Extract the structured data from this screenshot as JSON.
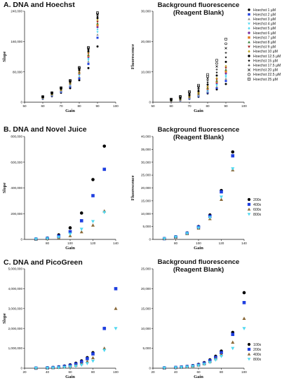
{
  "figure": {
    "colors": {
      "black": "#000000",
      "blue": "#1f3fe0",
      "gray": "#8a8a8a",
      "cyan": "#4fd8f0",
      "purple": "#7a2fa0",
      "orange": "#e07a1f",
      "green": "#2e7d32",
      "brown": "#7a4a1a",
      "pink": "#e04090",
      "olive": "#b8a020",
      "darkred": "#a01818",
      "teal": "#109090"
    }
  },
  "chart_data": [
    {
      "type": "scatter",
      "section_title": "A. DNA and Hoechst",
      "title": "",
      "xlabel": "Gain",
      "ylabel": "Slope",
      "xlim": [
        50,
        100
      ],
      "ylim": [
        0,
        240000
      ],
      "xticks": [
        50,
        60,
        70,
        80,
        90,
        100
      ],
      "yticks": [
        0,
        80000,
        160000,
        240000
      ],
      "xticklabels": [
        "50",
        "60",
        "70",
        "80",
        "90",
        "100"
      ],
      "yticklabels": [
        "0",
        "80,000",
        "160,000",
        "240,000"
      ],
      "x": [
        60,
        65,
        70,
        75,
        80,
        85,
        90
      ],
      "series": [
        {
          "name": "Hoechst 1 µM",
          "marker": "circle",
          "color": "#000000",
          "values": [
            9000,
            16000,
            25000,
            37000,
            58000,
            90000,
            147000
          ]
        },
        {
          "name": "Hoechst 2 µM",
          "marker": "square",
          "color": "#1f3fe0",
          "values": [
            10000,
            17500,
            27000,
            41000,
            63000,
            101000,
            170000
          ]
        },
        {
          "name": "Hoechst 3 µM",
          "marker": "triangle-up",
          "color": "#8a8a8a",
          "values": [
            10500,
            18200,
            28500,
            43500,
            67000,
            107000,
            178000
          ]
        },
        {
          "name": "Hoechst 4 µM",
          "marker": "triangle-down",
          "color": "#4fd8f0",
          "values": [
            11000,
            19000,
            29500,
            45000,
            70000,
            111000,
            185000
          ]
        },
        {
          "name": "Hoechst 5 µM",
          "marker": "diamond",
          "color": "#4fd8f0",
          "values": [
            11500,
            19800,
            30500,
            46500,
            72500,
            115000,
            192000
          ]
        },
        {
          "name": "Hoechst 6 µM",
          "marker": "circle",
          "color": "#7a2fa0",
          "values": [
            12000,
            20500,
            31500,
            48000,
            75000,
            119000,
            198000
          ]
        },
        {
          "name": "Hoechst 7 µM",
          "marker": "square",
          "color": "#e07a1f",
          "values": [
            12300,
            21000,
            32300,
            49000,
            77000,
            122000,
            203000
          ]
        },
        {
          "name": "Hoechst 8 µM",
          "marker": "triangle-up",
          "color": "#2e7d32",
          "values": [
            12600,
            21500,
            33000,
            50000,
            79000,
            125000,
            208000
          ]
        },
        {
          "name": "Hoechst 9 µM",
          "marker": "triangle-down",
          "color": "#a01818",
          "values": [
            12900,
            22000,
            33800,
            51000,
            81000,
            128000,
            212000
          ]
        },
        {
          "name": "Hoechst 10 µM",
          "marker": "diamond",
          "color": "#b8a020",
          "values": [
            13200,
            22500,
            34500,
            52000,
            83000,
            131000,
            217000
          ]
        },
        {
          "name": "Hoechst 12.5 µM",
          "marker": "circle",
          "color": "#000000",
          "values": [
            13500,
            23000,
            35300,
            53200,
            85000,
            134000,
            222000
          ]
        },
        {
          "name": "Hoechst 15 µM",
          "marker": "star",
          "color": "#000000",
          "values": [
            13800,
            23500,
            36000,
            54300,
            87000,
            137000,
            226000
          ]
        },
        {
          "name": "Hoechst 17.5 µM",
          "marker": "plus",
          "color": "#000000",
          "values": [
            14000,
            24000,
            36600,
            55200,
            88500,
            139000,
            229000
          ]
        },
        {
          "name": "Hoechst 20 µM",
          "marker": "x",
          "color": "#000000",
          "values": [
            14200,
            24300,
            37100,
            56000,
            89500,
            141000,
            232000
          ]
        },
        {
          "name": "Hoechst 22.5 µM",
          "marker": "circle-open",
          "color": "#000000",
          "values": [
            14400,
            24600,
            37500,
            56600,
            90500,
            143000,
            234000
          ]
        },
        {
          "name": "Hoechst 25 µM",
          "marker": "square-open",
          "color": "#000000",
          "values": [
            14600,
            24900,
            38000,
            57200,
            91500,
            144500,
            236000
          ]
        }
      ]
    },
    {
      "type": "scatter",
      "title": "Background fluorescence\n(Reagent Blank)",
      "xlabel": "Gain",
      "ylabel": "Fluorescence",
      "xlim": [
        50,
        100
      ],
      "ylim": [
        0,
        30000
      ],
      "xticks": [
        50,
        60,
        70,
        80,
        90,
        100
      ],
      "yticks": [
        0,
        10000,
        20000,
        30000
      ],
      "xticklabels": [
        "50",
        "60",
        "70",
        "80",
        "90",
        "100"
      ],
      "yticklabels": [
        "0",
        "10,000",
        "20,000",
        "30,000"
      ],
      "legend": "right",
      "x": [
        60,
        65,
        70,
        75,
        80,
        85,
        90
      ],
      "series": [
        {
          "name": "Hoechst 1 µM",
          "marker": "circle",
          "color": "#000000",
          "values": [
            300,
            600,
            1100,
            1800,
            2900,
            4200,
            6000
          ]
        },
        {
          "name": "Hoechst 2 µM",
          "marker": "square",
          "color": "#1f3fe0",
          "values": [
            350,
            650,
            1200,
            2000,
            3200,
            4700,
            7000
          ]
        },
        {
          "name": "Hoechst 3 µM",
          "marker": "triangle-up",
          "color": "#8a8a8a",
          "values": [
            380,
            700,
            1300,
            2150,
            3450,
            5100,
            7700
          ]
        },
        {
          "name": "Hoechst 4 µM",
          "marker": "triangle-down",
          "color": "#4fd8f0",
          "values": [
            410,
            760,
            1400,
            2300,
            3700,
            5500,
            8300
          ]
        },
        {
          "name": "Hoechst 5 µM",
          "marker": "diamond",
          "color": "#4fd8f0",
          "values": [
            440,
            820,
            1500,
            2450,
            3950,
            5900,
            8900
          ]
        },
        {
          "name": "Hoechst 6 µM",
          "marker": "circle",
          "color": "#7a2fa0",
          "values": [
            470,
            880,
            1600,
            2600,
            4200,
            6300,
            9500
          ]
        },
        {
          "name": "Hoechst 7 µM",
          "marker": "square",
          "color": "#e07a1f",
          "values": [
            500,
            940,
            1700,
            2750,
            4450,
            6700,
            10100
          ]
        },
        {
          "name": "Hoechst 8 µM",
          "marker": "triangle-up",
          "color": "#2e7d32",
          "values": [
            530,
            1000,
            1800,
            2900,
            4700,
            7100,
            10700
          ]
        },
        {
          "name": "Hoechst 9 µM",
          "marker": "triangle-down",
          "color": "#a01818",
          "values": [
            560,
            1060,
            1900,
            3050,
            4950,
            7500,
            11300
          ]
        },
        {
          "name": "Hoechst 10 µM",
          "marker": "diamond",
          "color": "#b8a020",
          "values": [
            590,
            1120,
            2000,
            3200,
            5200,
            7900,
            11900
          ]
        },
        {
          "name": "Hoechst 12.5 µM",
          "marker": "circle",
          "color": "#000000",
          "values": [
            650,
            1250,
            2250,
            3600,
            5800,
            8800,
            13300
          ]
        },
        {
          "name": "Hoechst 15 µM",
          "marker": "star",
          "color": "#000000",
          "values": [
            720,
            1380,
            2500,
            4000,
            6500,
            9800,
            14800
          ]
        },
        {
          "name": "Hoechst 17.5 µM",
          "marker": "plus",
          "color": "#000000",
          "values": [
            790,
            1510,
            2750,
            4400,
            7150,
            10800,
            16300
          ]
        },
        {
          "name": "Hoechst 20 µM",
          "marker": "x",
          "color": "#000000",
          "values": [
            860,
            1640,
            3000,
            4800,
            7800,
            11800,
            17800
          ]
        },
        {
          "name": "Hoechst 22.5 µM",
          "marker": "circle-open",
          "color": "#000000",
          "values": [
            930,
            1770,
            3250,
            5200,
            8450,
            12800,
            19300
          ]
        },
        {
          "name": "Hoechst 25 µM",
          "marker": "square-open",
          "color": "#000000",
          "values": [
            1000,
            1900,
            3500,
            5600,
            9100,
            13800,
            20800
          ]
        }
      ]
    },
    {
      "type": "scatter",
      "section_title": "B. DNA and Novel Juice",
      "title": "",
      "xlabel": "Gain",
      "ylabel": "Slope",
      "xlim": [
        60,
        140
      ],
      "ylim": [
        0,
        800000
      ],
      "xticks": [
        80,
        100,
        120,
        140
      ],
      "yticks": [
        0,
        200000,
        400000,
        600000,
        800000
      ],
      "xticklabels": [
        "80",
        "100",
        "120",
        "140"
      ],
      "yticklabels": [
        "0",
        "200,000",
        "400,000",
        "600,000",
        "800,000"
      ],
      "x": [
        70,
        80,
        90,
        100,
        110,
        120,
        130
      ],
      "series": [
        {
          "name": "200x",
          "marker": "circle",
          "color": "#000000",
          "values": [
            3000,
            10000,
            35000,
            90000,
            205000,
            465000,
            725000
          ]
        },
        {
          "name": "400x",
          "marker": "square",
          "color": "#1f3fe0",
          "values": [
            2500,
            8000,
            25000,
            60000,
            145000,
            340000,
            545000
          ]
        },
        {
          "name": "600x",
          "marker": "triangle-up",
          "color": "#8a6a3a",
          "values": [
            1500,
            4500,
            12000,
            28000,
            58000,
            110000,
            220000
          ]
        },
        {
          "name": "800x",
          "marker": "triangle-down",
          "color": "#4fd8f0",
          "values": [
            2000,
            6500,
            18000,
            42000,
            80000,
            140000,
            210000
          ]
        }
      ]
    },
    {
      "type": "scatter",
      "title": "Background fluorescence\n(Reagent Blank)",
      "xlabel": "Gain",
      "ylabel": "Fluorescence",
      "xlim": [
        60,
        140
      ],
      "ylim": [
        0,
        40000
      ],
      "xticks": [
        80,
        100,
        120,
        140
      ],
      "yticks": [
        0,
        5000,
        10000,
        15000,
        20000,
        25000,
        30000,
        35000,
        40000
      ],
      "xticklabels": [
        "80",
        "100",
        "120",
        "140"
      ],
      "yticklabels": [
        "0",
        "5,000",
        "10,000",
        "15,000",
        "20,000",
        "25,000",
        "30,000",
        "35,000",
        "40,000"
      ],
      "legend": "right",
      "x": [
        70,
        80,
        90,
        100,
        110,
        120,
        130
      ],
      "series": [
        {
          "name": "200x",
          "marker": "circle",
          "color": "#000000",
          "values": [
            300,
            1000,
            2500,
            5000,
            9500,
            19000,
            34000
          ]
        },
        {
          "name": "400x",
          "marker": "square",
          "color": "#1f3fe0",
          "values": [
            280,
            950,
            2400,
            4800,
            9000,
            18500,
            32500
          ]
        },
        {
          "name": "600x",
          "marker": "triangle-up",
          "color": "#8a6a3a",
          "values": [
            250,
            850,
            2200,
            4300,
            8000,
            15500,
            27000
          ]
        },
        {
          "name": "800x",
          "marker": "triangle-down",
          "color": "#4fd8f0",
          "values": [
            260,
            880,
            2300,
            4500,
            8500,
            16500,
            27500
          ]
        }
      ]
    },
    {
      "type": "scatter",
      "section_title": "C. DNA and PicoGreen",
      "title": "",
      "xlabel": "Gain",
      "ylabel": "Slope",
      "xlim": [
        20,
        100
      ],
      "ylim": [
        0,
        5000000
      ],
      "xticks": [
        20,
        40,
        60,
        80,
        100
      ],
      "yticks": [
        0,
        1000000,
        2000000,
        3000000,
        4000000,
        5000000
      ],
      "xticklabels": [
        "20",
        "40",
        "60",
        "80",
        "100"
      ],
      "yticklabels": [
        "0",
        "1,000,000",
        "2,000,000",
        "3,000,000",
        "4,000,000",
        "5,000,000"
      ],
      "x": [
        30,
        40,
        45,
        50,
        55,
        60,
        65,
        70,
        75,
        80,
        90,
        100
      ],
      "series": [
        {
          "name": "100x",
          "marker": "circle",
          "color": "#000000",
          "values": [
            5000,
            20000,
            40000,
            70000,
            110000,
            170000,
            250000,
            370000,
            530000,
            780000,
            2000000,
            null
          ]
        },
        {
          "name": "200x",
          "marker": "square",
          "color": "#1f3fe0",
          "values": [
            4000,
            15000,
            30000,
            55000,
            90000,
            140000,
            210000,
            320000,
            480000,
            720000,
            2000000,
            4000000
          ]
        },
        {
          "name": "400x",
          "marker": "triangle-up",
          "color": "#8a6a3a",
          "values": [
            3000,
            10000,
            22000,
            40000,
            65000,
            100000,
            150000,
            230000,
            340000,
            520000,
            1000000,
            3000000
          ]
        },
        {
          "name": "800x",
          "marker": "triangle-down",
          "color": "#4fd8f0",
          "values": [
            2000,
            7000,
            15000,
            28000,
            45000,
            70000,
            105000,
            160000,
            240000,
            360000,
            900000,
            2000000
          ]
        }
      ]
    },
    {
      "type": "scatter",
      "title": "Background fluorescence\n(Reagent Blank)",
      "xlabel": "Gain",
      "ylabel": "",
      "xlim": [
        20,
        100
      ],
      "ylim": [
        0,
        25000
      ],
      "xticks": [
        20,
        40,
        60,
        80,
        100
      ],
      "yticks": [
        0,
        5000,
        10000,
        15000,
        20000,
        25000
      ],
      "xticklabels": [
        "20",
        "40",
        "60",
        "80",
        "100"
      ],
      "yticklabels": [
        "0",
        "5,000",
        "10,000",
        "15,000",
        "20,000",
        "25,000"
      ],
      "legend": "right",
      "x": [
        30,
        40,
        45,
        50,
        55,
        60,
        65,
        70,
        75,
        80,
        90,
        100
      ],
      "series": [
        {
          "name": "100x",
          "marker": "circle",
          "color": "#000000",
          "values": [
            80,
            200,
            300,
            450,
            650,
            950,
            1400,
            2100,
            3000,
            4300,
            9000,
            19000
          ]
        },
        {
          "name": "200x",
          "marker": "square",
          "color": "#1f3fe0",
          "values": [
            70,
            180,
            270,
            400,
            580,
            850,
            1250,
            1900,
            2700,
            3900,
            8500,
            16500
          ]
        },
        {
          "name": "400x",
          "marker": "triangle-up",
          "color": "#8a6a3a",
          "values": [
            60,
            160,
            240,
            350,
            520,
            760,
            1100,
            1650,
            2400,
            3400,
            6500,
            12500
          ]
        },
        {
          "name": "800x",
          "marker": "triangle-down",
          "color": "#4fd8f0",
          "values": [
            50,
            140,
            210,
            310,
            460,
            670,
            980,
            1450,
            2100,
            3000,
            5000,
            10000
          ]
        }
      ]
    }
  ]
}
